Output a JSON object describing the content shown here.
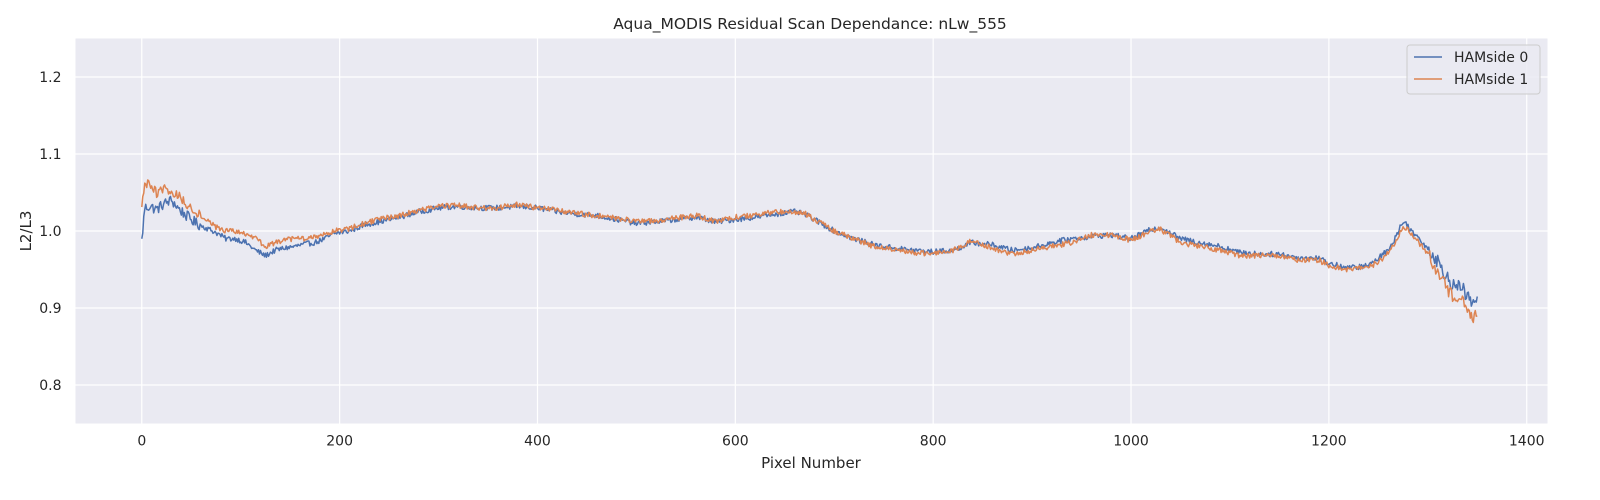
{
  "chart_data": {
    "type": "line",
    "title": "Aqua_MODIS Residual Scan Dependance: nLw_555",
    "xlabel": "Pixel Number",
    "ylabel": "L2/L3",
    "xlim": [
      -67,
      1421
    ],
    "ylim": [
      0.75,
      1.25
    ],
    "xticks": [
      0,
      200,
      400,
      600,
      800,
      1000,
      1200,
      1400
    ],
    "yticks": [
      0.8,
      0.9,
      1.0,
      1.1,
      1.2
    ],
    "xtick_labels": [
      "0",
      "200",
      "400",
      "600",
      "800",
      "1000",
      "1200",
      "1400"
    ],
    "ytick_labels": [
      "0.8",
      "0.9",
      "1.0",
      "1.1",
      "1.2"
    ],
    "grid": true,
    "legend_position": "top-right",
    "series": [
      {
        "name": "HAMside 0",
        "color": "#4c72b0",
        "points": [
          [
            0,
            0.987
          ],
          [
            3,
            1.03
          ],
          [
            8,
            1.032
          ],
          [
            15,
            1.028
          ],
          [
            22,
            1.035
          ],
          [
            30,
            1.04
          ],
          [
            38,
            1.028
          ],
          [
            45,
            1.02
          ],
          [
            55,
            1.01
          ],
          [
            65,
            1.004
          ],
          [
            75,
            0.998
          ],
          [
            85,
            0.99
          ],
          [
            95,
            0.99
          ],
          [
            105,
            0.985
          ],
          [
            115,
            0.975
          ],
          [
            125,
            0.968
          ],
          [
            135,
            0.975
          ],
          [
            145,
            0.978
          ],
          [
            155,
            0.98
          ],
          [
            165,
            0.983
          ],
          [
            175,
            0.985
          ],
          [
            185,
            0.99
          ],
          [
            195,
            0.997
          ],
          [
            210,
            1.0
          ],
          [
            225,
            1.008
          ],
          [
            240,
            1.012
          ],
          [
            260,
            1.018
          ],
          [
            280,
            1.025
          ],
          [
            300,
            1.03
          ],
          [
            320,
            1.032
          ],
          [
            340,
            1.03
          ],
          [
            360,
            1.03
          ],
          [
            380,
            1.032
          ],
          [
            400,
            1.03
          ],
          [
            420,
            1.025
          ],
          [
            440,
            1.022
          ],
          [
            460,
            1.02
          ],
          [
            480,
            1.015
          ],
          [
            500,
            1.01
          ],
          [
            520,
            1.012
          ],
          [
            540,
            1.015
          ],
          [
            560,
            1.018
          ],
          [
            580,
            1.012
          ],
          [
            600,
            1.015
          ],
          [
            620,
            1.018
          ],
          [
            640,
            1.022
          ],
          [
            660,
            1.025
          ],
          [
            670,
            1.022
          ],
          [
            680,
            1.015
          ],
          [
            700,
            1.0
          ],
          [
            720,
            0.99
          ],
          [
            740,
            0.982
          ],
          [
            760,
            0.978
          ],
          [
            780,
            0.975
          ],
          [
            800,
            0.973
          ],
          [
            820,
            0.975
          ],
          [
            840,
            0.985
          ],
          [
            860,
            0.982
          ],
          [
            880,
            0.975
          ],
          [
            900,
            0.978
          ],
          [
            920,
            0.985
          ],
          [
            940,
            0.99
          ],
          [
            960,
            0.993
          ],
          [
            980,
            0.995
          ],
          [
            1000,
            0.99
          ],
          [
            1020,
            1.002
          ],
          [
            1030,
            1.005
          ],
          [
            1050,
            0.99
          ],
          [
            1070,
            0.985
          ],
          [
            1090,
            0.98
          ],
          [
            1110,
            0.972
          ],
          [
            1130,
            0.97
          ],
          [
            1150,
            0.97
          ],
          [
            1170,
            0.965
          ],
          [
            1190,
            0.965
          ],
          [
            1200,
            0.958
          ],
          [
            1220,
            0.952
          ],
          [
            1240,
            0.955
          ],
          [
            1255,
            0.97
          ],
          [
            1265,
            0.985
          ],
          [
            1272,
            1.005
          ],
          [
            1277,
            1.012
          ],
          [
            1285,
            0.998
          ],
          [
            1295,
            0.985
          ],
          [
            1305,
            0.97
          ],
          [
            1315,
            0.95
          ],
          [
            1325,
            0.93
          ],
          [
            1335,
            0.925
          ],
          [
            1345,
            0.905
          ],
          [
            1350,
            0.915
          ]
        ]
      },
      {
        "name": "HAMside 1",
        "color": "#dd8452",
        "points": [
          [
            0,
            1.03
          ],
          [
            3,
            1.062
          ],
          [
            8,
            1.058
          ],
          [
            15,
            1.05
          ],
          [
            22,
            1.055
          ],
          [
            30,
            1.05
          ],
          [
            38,
            1.045
          ],
          [
            45,
            1.035
          ],
          [
            55,
            1.025
          ],
          [
            65,
            1.015
          ],
          [
            75,
            1.005
          ],
          [
            85,
            1.0
          ],
          [
            95,
            1.0
          ],
          [
            105,
            0.995
          ],
          [
            115,
            0.99
          ],
          [
            125,
            0.98
          ],
          [
            135,
            0.985
          ],
          [
            145,
            0.988
          ],
          [
            155,
            0.99
          ],
          [
            165,
            0.99
          ],
          [
            175,
            0.992
          ],
          [
            185,
            0.997
          ],
          [
            195,
            1.0
          ],
          [
            210,
            1.003
          ],
          [
            225,
            1.01
          ],
          [
            240,
            1.015
          ],
          [
            260,
            1.02
          ],
          [
            280,
            1.027
          ],
          [
            300,
            1.032
          ],
          [
            320,
            1.033
          ],
          [
            340,
            1.03
          ],
          [
            360,
            1.03
          ],
          [
            380,
            1.035
          ],
          [
            400,
            1.03
          ],
          [
            420,
            1.027
          ],
          [
            440,
            1.023
          ],
          [
            460,
            1.02
          ],
          [
            480,
            1.017
          ],
          [
            500,
            1.012
          ],
          [
            520,
            1.013
          ],
          [
            540,
            1.017
          ],
          [
            560,
            1.02
          ],
          [
            580,
            1.012
          ],
          [
            600,
            1.018
          ],
          [
            620,
            1.02
          ],
          [
            640,
            1.025
          ],
          [
            660,
            1.025
          ],
          [
            670,
            1.023
          ],
          [
            680,
            1.015
          ],
          [
            700,
            1.0
          ],
          [
            720,
            0.99
          ],
          [
            740,
            0.98
          ],
          [
            760,
            0.975
          ],
          [
            780,
            0.972
          ],
          [
            800,
            0.97
          ],
          [
            820,
            0.975
          ],
          [
            840,
            0.988
          ],
          [
            860,
            0.978
          ],
          [
            880,
            0.97
          ],
          [
            900,
            0.975
          ],
          [
            920,
            0.98
          ],
          [
            940,
            0.985
          ],
          [
            960,
            0.995
          ],
          [
            980,
            0.995
          ],
          [
            1000,
            0.988
          ],
          [
            1020,
            1.0
          ],
          [
            1030,
            1.002
          ],
          [
            1050,
            0.985
          ],
          [
            1070,
            0.98
          ],
          [
            1090,
            0.975
          ],
          [
            1110,
            0.968
          ],
          [
            1130,
            0.968
          ],
          [
            1150,
            0.968
          ],
          [
            1170,
            0.962
          ],
          [
            1190,
            0.962
          ],
          [
            1200,
            0.955
          ],
          [
            1220,
            0.95
          ],
          [
            1240,
            0.952
          ],
          [
            1255,
            0.965
          ],
          [
            1265,
            0.98
          ],
          [
            1272,
            0.998
          ],
          [
            1277,
            1.005
          ],
          [
            1285,
            0.995
          ],
          [
            1295,
            0.978
          ],
          [
            1305,
            0.96
          ],
          [
            1315,
            0.935
          ],
          [
            1325,
            0.915
          ],
          [
            1335,
            0.91
          ],
          [
            1345,
            0.885
          ],
          [
            1350,
            0.89
          ]
        ]
      }
    ]
  }
}
